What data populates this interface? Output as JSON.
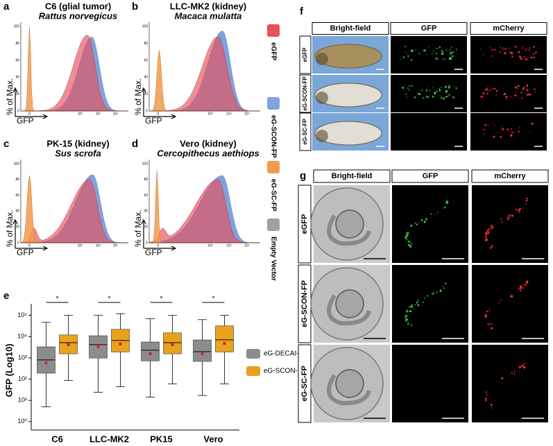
{
  "histograms": {
    "panels": [
      {
        "label": "a",
        "title": "C6 (glial tumor)",
        "species": "Rattus norvegicus"
      },
      {
        "label": "b",
        "title": "LLC-MK2 (kidney)",
        "species": "Macaca mulatta"
      },
      {
        "label": "c",
        "title": "PK-15 (kidney)",
        "species": "Sus scrofa"
      },
      {
        "label": "d",
        "title": "Vero (kidney)",
        "species": "Cercopithecus aethiops"
      }
    ],
    "ylabel": "% of Max.",
    "xlabel": "GFP",
    "yticks": [
      "0",
      "20",
      "40",
      "60",
      "80",
      "100"
    ],
    "xticks": [
      "0",
      "10³",
      "10⁴",
      "10⁵"
    ],
    "legend": [
      {
        "name": "eGFP",
        "color": "#e8505b"
      },
      {
        "name": "eG-SCON-FP",
        "color": "#7fa3dc"
      },
      {
        "name": "eG-SC-FP",
        "color": "#f39a4c"
      },
      {
        "name": "Empty Vector",
        "color": "#a0a0a0"
      }
    ]
  },
  "chart_data": {
    "type": "box",
    "label": "e",
    "ylabel": "GFP (Log10)",
    "categories": [
      "C6",
      "LLC-MK2",
      "PK15",
      "Vero"
    ],
    "log_y": true,
    "ylim": [
      0.4,
      350000
    ],
    "yticks": [
      {
        "value": 1,
        "label": "10⁰"
      },
      {
        "value": 10,
        "label": "10¹"
      },
      {
        "value": 100,
        "label": "10²"
      },
      {
        "value": 1000,
        "label": "10³"
      },
      {
        "value": 10000,
        "label": "10⁴"
      },
      {
        "value": 100000,
        "label": "10⁵"
      }
    ],
    "mean_color": "#e02020",
    "series": [
      {
        "name": "eG-DECAI-FP",
        "color": "#8c8c8c",
        "boxes": [
          {
            "low": 5,
            "q1": 190,
            "median": 800,
            "q3": 3300,
            "high": 47000,
            "mean": 580
          },
          {
            "low": 24,
            "q1": 980,
            "median": 4200,
            "q3": 11000,
            "high": 100000,
            "mean": 3300
          },
          {
            "low": 14,
            "q1": 720,
            "median": 2300,
            "q3": 5600,
            "high": 69000,
            "mean": 1550
          },
          {
            "low": 17,
            "q1": 680,
            "median": 1950,
            "q3": 7000,
            "high": 63000,
            "mean": 1550
          }
        ]
      },
      {
        "name": "eG-SCON-FP",
        "color": "#e8a21c",
        "boxes": [
          {
            "low": 87,
            "q1": 1550,
            "median": 5200,
            "q3": 12000,
            "high": 100000,
            "mean": 4200
          },
          {
            "low": 44,
            "q1": 1900,
            "median": 6600,
            "q3": 22000,
            "high": 120000,
            "mean": 4500
          },
          {
            "low": 60,
            "q1": 1550,
            "median": 5200,
            "q3": 15000,
            "high": 100000,
            "mean": 4200
          },
          {
            "low": 60,
            "q1": 1900,
            "median": 7100,
            "q3": 32000,
            "high": 100000,
            "mean": 4800
          }
        ]
      }
    ],
    "significance": [
      "*",
      "*",
      "*",
      "*"
    ]
  },
  "panel_f": {
    "label": "f",
    "columns": [
      "Bright-field",
      "GFP",
      "mCherry"
    ],
    "rows": [
      "eGFP",
      "eG-SCON-FP",
      "eG-SC-FP"
    ]
  },
  "panel_g": {
    "label": "g",
    "columns": [
      "Bright-field",
      "GFP",
      "mCherry"
    ],
    "rows": [
      "eGFP",
      "eG-SCON-FP",
      "eG-SC-FP"
    ]
  }
}
